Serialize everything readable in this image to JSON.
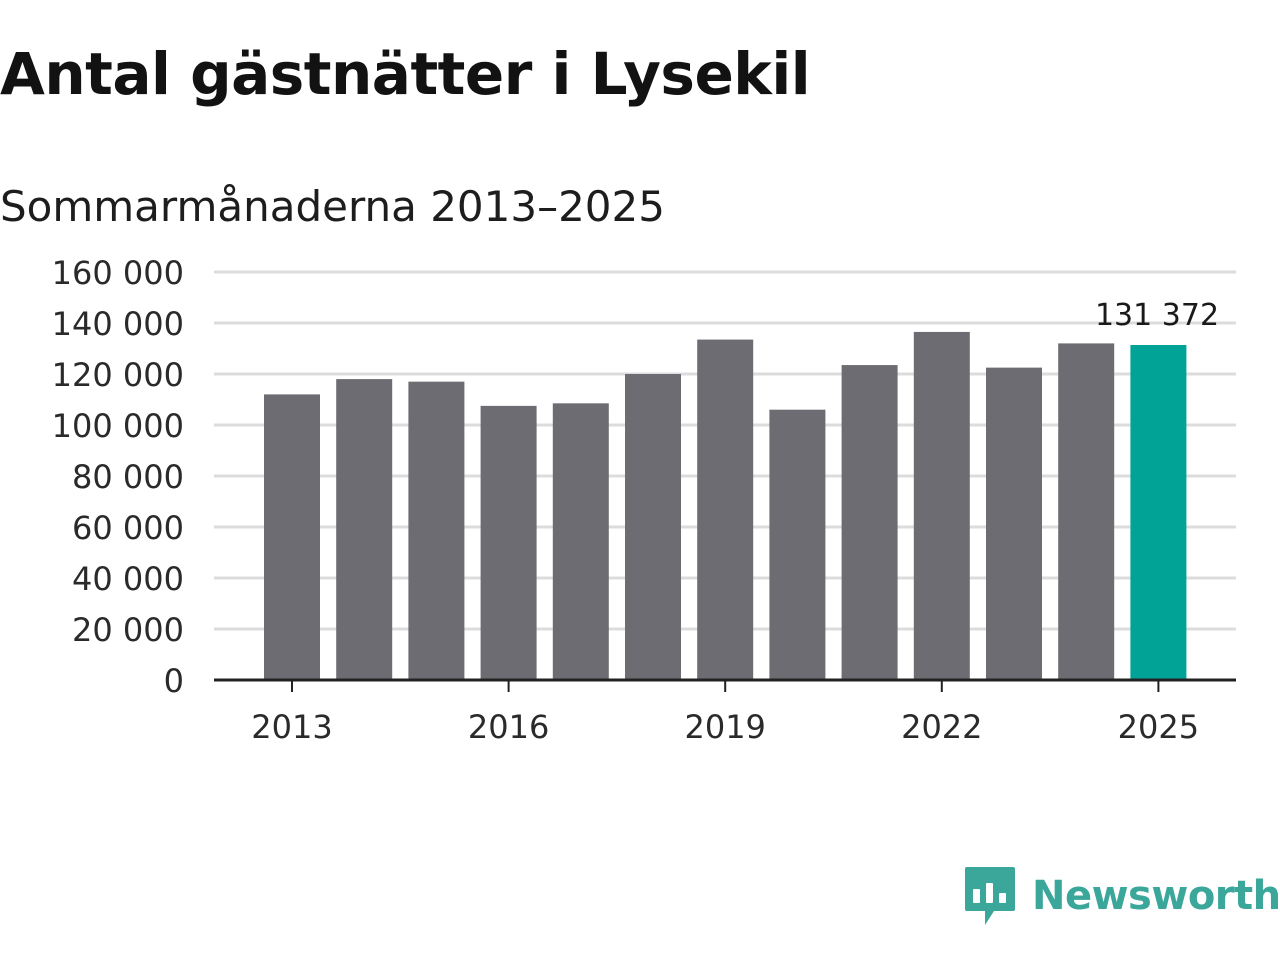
{
  "title": "Antal gästnätter i Lysekil",
  "subtitle": "Sommarmånaderna 2013–2025",
  "brand": {
    "name": "Newsworthy",
    "icon": "newsworthy-logo-icon",
    "color": "#3aa79a"
  },
  "chart_data": {
    "type": "bar",
    "title": "Antal gästnätter i Lysekil",
    "subtitle": "Sommarmånaderna 2013–2025",
    "xlabel": "",
    "ylabel": "",
    "categories": [
      "2013",
      "2014",
      "2015",
      "2016",
      "2017",
      "2018",
      "2019",
      "2020",
      "2021",
      "2022",
      "2023",
      "2024",
      "2025"
    ],
    "values": [
      112000,
      118000,
      117000,
      107500,
      108500,
      120000,
      133500,
      106000,
      123500,
      136500,
      122500,
      132000,
      131372
    ],
    "ylim": [
      0,
      160000
    ],
    "y_ticks": [
      0,
      20000,
      40000,
      60000,
      80000,
      100000,
      120000,
      140000,
      160000
    ],
    "y_tick_labels": [
      "0",
      "20 000",
      "40 000",
      "60 000",
      "80 000",
      "100 000",
      "120 000",
      "140 000",
      "160 000"
    ],
    "x_tick_labels": [
      "2013",
      "2016",
      "2019",
      "2022",
      "2025"
    ],
    "grid": true,
    "colors": {
      "default_bar": "#6d6c73",
      "highlight_bar": "#00a396",
      "grid": "#dcdcdc",
      "axis": "#222222"
    },
    "highlight": {
      "category": "2025",
      "label": "131 372"
    }
  }
}
